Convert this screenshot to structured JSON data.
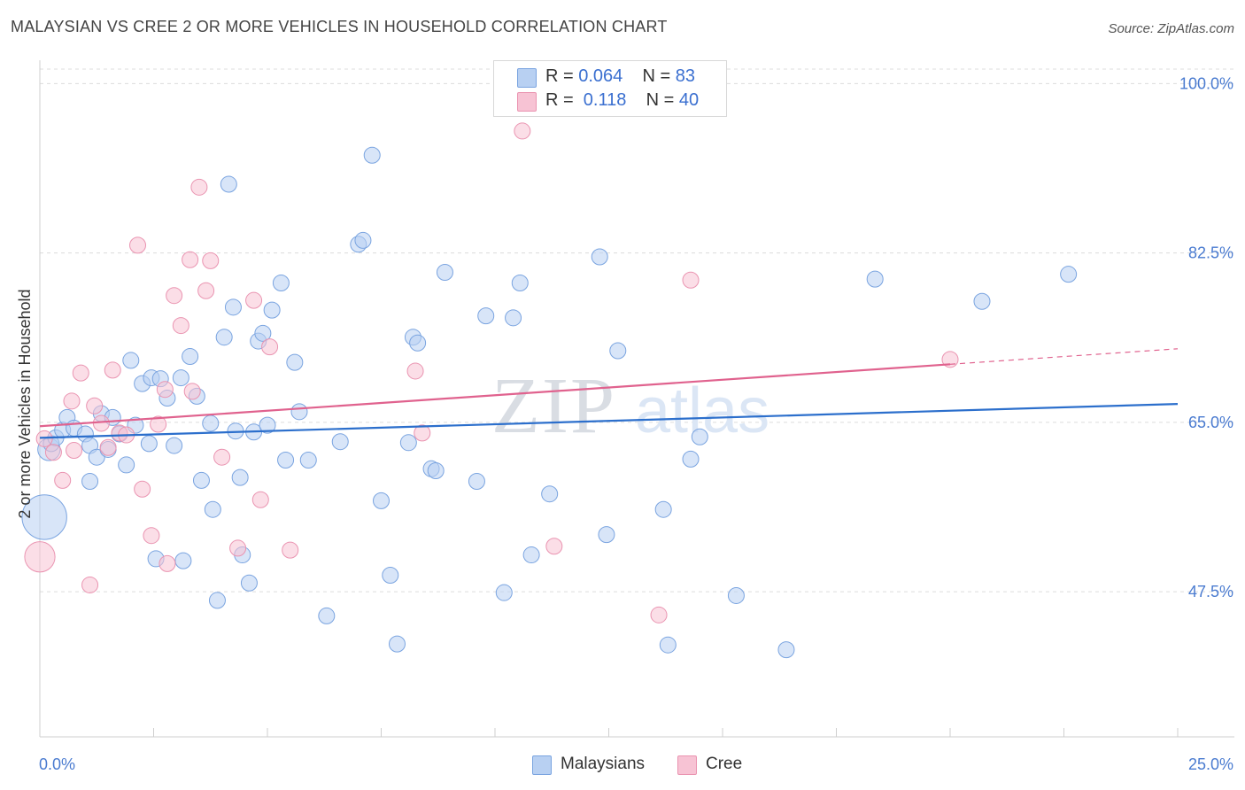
{
  "title": "MALAYSIAN VS CREE 2 OR MORE VEHICLES IN HOUSEHOLD CORRELATION CHART",
  "source": "Source: ZipAtlas.com",
  "legend": {
    "rows": [
      {
        "r_label": "R = ",
        "r_value": "0.064",
        "n_label": "N = ",
        "n_value": "83"
      },
      {
        "r_label": "R = ",
        "r_value": " 0.118",
        "n_label": "N = ",
        "n_value": "40"
      }
    ]
  },
  "bottom_legend": {
    "malaysians": "Malaysians",
    "cree": "Cree"
  },
  "colors": {
    "malaysians_fill": "#b8d0f2",
    "malaysians_stroke": "#7aa4e0",
    "malaysians_line": "#2c6fcc",
    "cree_fill": "#f7c3d4",
    "cree_stroke": "#ea94b1",
    "cree_line": "#e0628e",
    "tick": "#4a7bd0"
  },
  "chart_data": {
    "type": "scatter",
    "xlabel": "",
    "ylabel": "2 or more Vehicles in Household",
    "xlim": [
      0,
      25
    ],
    "ylim": [
      32.5,
      101.5
    ],
    "x_tick_labels": [
      "0.0%",
      "25.0%"
    ],
    "y_ticks": [
      47.5,
      65.0,
      82.5,
      100.0
    ],
    "y_tick_labels": [
      "47.5%",
      "65.0%",
      "82.5%",
      "100.0%"
    ],
    "grid": true,
    "series": [
      {
        "name": "Malaysians",
        "trend": {
          "x": [
            0,
            25
          ],
          "y": [
            63.4,
            66.9
          ]
        },
        "points": [
          [
            0.2,
            62.2,
            1.4
          ],
          [
            0.25,
            62.8,
            1
          ],
          [
            0.35,
            63.4,
            1
          ],
          [
            0.5,
            64.2,
            1
          ],
          [
            0.6,
            65.5,
            1
          ],
          [
            0.75,
            64.4,
            1
          ],
          [
            1.0,
            63.8,
            1
          ],
          [
            1.1,
            62.6,
            1
          ],
          [
            1.1,
            58.9,
            1
          ],
          [
            1.25,
            61.4,
            1
          ],
          [
            1.35,
            65.9,
            1
          ],
          [
            1.5,
            62.2,
            1
          ],
          [
            1.6,
            65.5,
            1
          ],
          [
            1.75,
            63.8,
            1
          ],
          [
            1.9,
            60.6,
            1
          ],
          [
            2.0,
            71.4,
            1
          ],
          [
            2.1,
            64.7,
            1
          ],
          [
            2.25,
            69.0,
            1
          ],
          [
            2.4,
            62.8,
            1
          ],
          [
            2.45,
            69.6,
            1
          ],
          [
            2.55,
            50.9,
            1
          ],
          [
            2.65,
            69.5,
            1
          ],
          [
            2.8,
            67.5,
            1
          ],
          [
            2.95,
            62.6,
            1
          ],
          [
            3.1,
            69.6,
            1
          ],
          [
            3.15,
            50.7,
            1
          ],
          [
            3.3,
            71.8,
            1
          ],
          [
            3.45,
            67.7,
            1
          ],
          [
            3.55,
            59.0,
            1
          ],
          [
            3.75,
            64.9,
            1
          ],
          [
            3.8,
            56.0,
            1
          ],
          [
            3.9,
            46.6,
            1
          ],
          [
            4.05,
            73.8,
            1
          ],
          [
            4.15,
            89.6,
            1
          ],
          [
            4.25,
            76.9,
            1
          ],
          [
            4.3,
            64.1,
            1
          ],
          [
            4.4,
            59.3,
            1
          ],
          [
            4.45,
            51.3,
            1
          ],
          [
            4.6,
            48.4,
            1
          ],
          [
            4.7,
            64.0,
            1
          ],
          [
            4.8,
            73.4,
            1
          ],
          [
            4.9,
            74.2,
            1
          ],
          [
            5.0,
            64.7,
            1
          ],
          [
            5.1,
            76.6,
            1
          ],
          [
            5.3,
            79.4,
            1
          ],
          [
            5.4,
            61.1,
            1
          ],
          [
            5.6,
            71.2,
            1
          ],
          [
            5.7,
            66.1,
            1
          ],
          [
            5.9,
            61.1,
            1
          ],
          [
            6.3,
            45.0,
            1
          ],
          [
            6.6,
            63.0,
            1
          ],
          [
            7.0,
            83.4,
            1
          ],
          [
            7.1,
            83.8,
            1
          ],
          [
            7.3,
            92.6,
            1
          ],
          [
            7.5,
            56.9,
            1
          ],
          [
            7.7,
            49.2,
            1
          ],
          [
            7.85,
            42.1,
            1
          ],
          [
            8.1,
            62.9,
            1
          ],
          [
            8.2,
            73.8,
            1
          ],
          [
            8.3,
            73.2,
            1
          ],
          [
            8.6,
            60.2,
            1
          ],
          [
            8.7,
            60.0,
            1
          ],
          [
            8.9,
            80.5,
            1
          ],
          [
            9.6,
            58.9,
            1
          ],
          [
            9.8,
            76.0,
            1
          ],
          [
            10.2,
            47.4,
            1
          ],
          [
            10.4,
            75.8,
            1
          ],
          [
            10.55,
            79.4,
            1
          ],
          [
            10.8,
            51.3,
            1
          ],
          [
            11.2,
            57.6,
            1
          ],
          [
            12.3,
            82.1,
            1
          ],
          [
            12.45,
            53.4,
            1
          ],
          [
            12.7,
            72.4,
            1
          ],
          [
            13.8,
            42.0,
            1
          ],
          [
            14.3,
            61.2,
            1
          ],
          [
            15.3,
            47.1,
            1
          ],
          [
            16.4,
            41.5,
            1
          ],
          [
            18.35,
            79.8,
            1
          ],
          [
            20.7,
            77.5,
            1
          ],
          [
            22.6,
            80.3,
            1
          ],
          [
            13.7,
            56.0,
            1
          ],
          [
            14.5,
            63.5,
            1
          ],
          [
            0.1,
            55.2,
            2.8
          ]
        ]
      },
      {
        "name": "Cree",
        "trend": {
          "x": [
            0,
            25
          ],
          "y": [
            64.6,
            72.6
          ]
        },
        "points": [
          [
            0.1,
            63.3,
            1
          ],
          [
            0.3,
            61.9,
            1
          ],
          [
            0.5,
            59.0,
            1
          ],
          [
            0.7,
            67.2,
            1
          ],
          [
            0.75,
            62.1,
            1
          ],
          [
            0.9,
            70.1,
            1
          ],
          [
            1.1,
            48.2,
            1
          ],
          [
            1.2,
            66.7,
            1
          ],
          [
            1.35,
            64.9,
            1
          ],
          [
            1.5,
            62.4,
            1
          ],
          [
            1.6,
            70.4,
            1
          ],
          [
            1.75,
            63.9,
            1
          ],
          [
            1.9,
            63.7,
            1
          ],
          [
            2.15,
            83.3,
            1
          ],
          [
            2.25,
            58.1,
            1
          ],
          [
            2.45,
            53.3,
            1
          ],
          [
            2.6,
            64.8,
            1
          ],
          [
            2.75,
            68.4,
            1
          ],
          [
            2.8,
            50.4,
            1
          ],
          [
            2.95,
            78.1,
            1
          ],
          [
            3.1,
            75.0,
            1
          ],
          [
            3.3,
            81.8,
            1
          ],
          [
            3.35,
            68.2,
            1
          ],
          [
            3.5,
            89.3,
            1
          ],
          [
            3.65,
            78.6,
            1
          ],
          [
            3.75,
            81.7,
            1
          ],
          [
            4.0,
            61.4,
            1
          ],
          [
            4.35,
            52.0,
            1
          ],
          [
            4.7,
            77.6,
            1
          ],
          [
            4.85,
            57.0,
            1
          ],
          [
            5.05,
            72.8,
            1
          ],
          [
            5.5,
            51.8,
            1
          ],
          [
            8.25,
            70.3,
            1
          ],
          [
            8.4,
            63.9,
            1
          ],
          [
            10.6,
            95.1,
            1
          ],
          [
            11.3,
            52.2,
            1
          ],
          [
            13.6,
            45.1,
            1
          ],
          [
            14.3,
            79.7,
            1
          ],
          [
            0.0,
            51.1,
            1.9
          ],
          [
            20.0,
            71.5,
            1
          ]
        ]
      }
    ]
  }
}
